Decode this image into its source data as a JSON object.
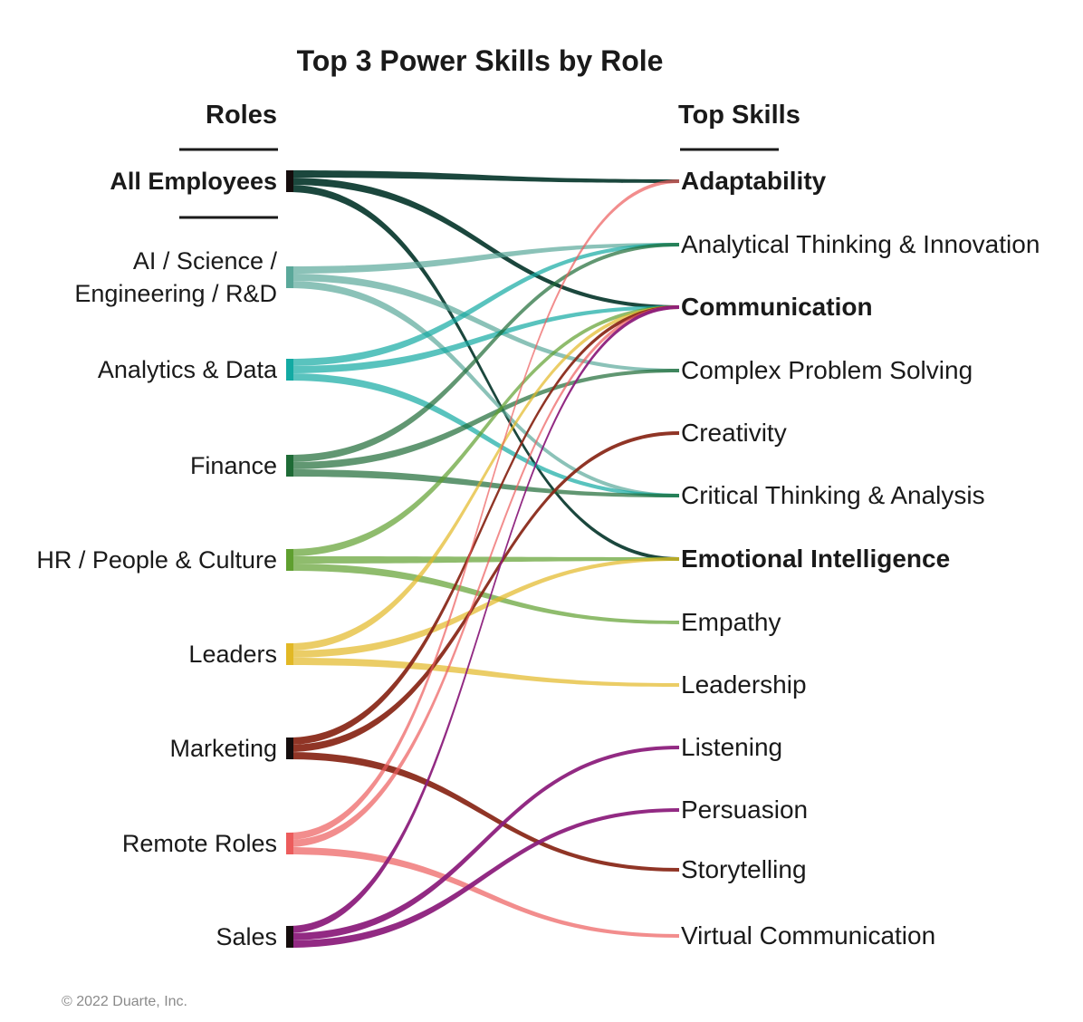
{
  "title": "Top 3 Power Skills by Role",
  "roles_header": "Roles",
  "skills_header": "Top Skills",
  "copyright": "© 2022 Duarte, Inc.",
  "roles": [
    {
      "id": "all",
      "lines": [
        "All Employees"
      ],
      "bold": true,
      "color": "#0f3d33"
    },
    {
      "id": "ai",
      "lines": [
        "AI / Science /",
        "Engineering / R&D"
      ],
      "bold": false,
      "color": "#5aa89a"
    },
    {
      "id": "analytics",
      "lines": [
        "Analytics & Data"
      ],
      "bold": false,
      "color": "#13aaa3"
    },
    {
      "id": "finance",
      "lines": [
        "Finance"
      ],
      "bold": false,
      "color": "#1e6b36"
    },
    {
      "id": "hr",
      "lines": [
        "HR / People & Culture"
      ],
      "bold": false,
      "color": "#5f9f2f"
    },
    {
      "id": "leaders",
      "lines": [
        "Leaders"
      ],
      "bold": false,
      "color": "#e2b825"
    },
    {
      "id": "marketing",
      "lines": [
        "Marketing"
      ],
      "bold": false,
      "color": "#8a2a1a"
    },
    {
      "id": "remote",
      "lines": [
        "Remote Roles"
      ],
      "bold": false,
      "color": "#ec5c5c"
    },
    {
      "id": "sales",
      "lines": [
        "Sales"
      ],
      "bold": false,
      "color": "#8c1f7c"
    }
  ],
  "skills": [
    {
      "id": "adaptability",
      "label": "Adaptability",
      "bold": true
    },
    {
      "id": "analytical",
      "label": "Analytical Thinking & Innovation",
      "bold": false
    },
    {
      "id": "communication",
      "label": "Communication",
      "bold": true
    },
    {
      "id": "complex",
      "label": "Complex Problem Solving",
      "bold": false
    },
    {
      "id": "creativity",
      "label": "Creativity",
      "bold": false
    },
    {
      "id": "critical",
      "label": "Critical Thinking & Analysis",
      "bold": false
    },
    {
      "id": "emotional",
      "label": "Emotional Intelligence",
      "bold": true
    },
    {
      "id": "empathy",
      "label": "Empathy",
      "bold": false
    },
    {
      "id": "leadership",
      "label": "Leadership",
      "bold": false
    },
    {
      "id": "listening",
      "label": "Listening",
      "bold": false
    },
    {
      "id": "persuasion",
      "label": "Persuasion",
      "bold": false
    },
    {
      "id": "storytelling",
      "label": "Storytelling",
      "bold": false
    },
    {
      "id": "virtual",
      "label": "Virtual Communication",
      "bold": false
    }
  ],
  "links": [
    {
      "role": "all",
      "skill": "adaptability"
    },
    {
      "role": "all",
      "skill": "communication"
    },
    {
      "role": "all",
      "skill": "emotional"
    },
    {
      "role": "ai",
      "skill": "analytical"
    },
    {
      "role": "ai",
      "skill": "complex"
    },
    {
      "role": "ai",
      "skill": "critical"
    },
    {
      "role": "analytics",
      "skill": "analytical"
    },
    {
      "role": "analytics",
      "skill": "communication"
    },
    {
      "role": "analytics",
      "skill": "critical"
    },
    {
      "role": "finance",
      "skill": "analytical"
    },
    {
      "role": "finance",
      "skill": "complex"
    },
    {
      "role": "finance",
      "skill": "critical"
    },
    {
      "role": "hr",
      "skill": "communication"
    },
    {
      "role": "hr",
      "skill": "emotional"
    },
    {
      "role": "hr",
      "skill": "empathy"
    },
    {
      "role": "leaders",
      "skill": "communication"
    },
    {
      "role": "leaders",
      "skill": "emotional"
    },
    {
      "role": "leaders",
      "skill": "leadership"
    },
    {
      "role": "marketing",
      "skill": "communication"
    },
    {
      "role": "marketing",
      "skill": "creativity"
    },
    {
      "role": "marketing",
      "skill": "storytelling"
    },
    {
      "role": "remote",
      "skill": "adaptability"
    },
    {
      "role": "remote",
      "skill": "communication"
    },
    {
      "role": "remote",
      "skill": "virtual"
    },
    {
      "role": "sales",
      "skill": "communication"
    },
    {
      "role": "sales",
      "skill": "listening"
    },
    {
      "role": "sales",
      "skill": "persuasion"
    }
  ]
}
